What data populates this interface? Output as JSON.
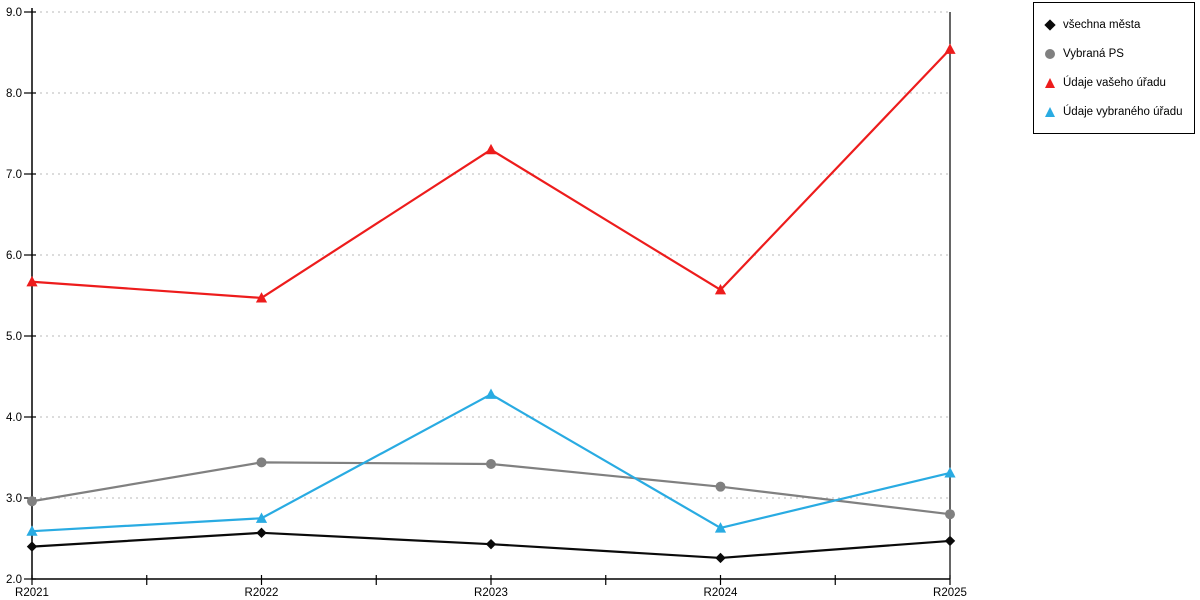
{
  "chart_data": {
    "type": "line",
    "categories": [
      "R2021",
      "R2022",
      "R2023",
      "R2024",
      "R2025"
    ],
    "series": [
      {
        "name": "všechna města",
        "marker": "diamond",
        "color": "#0a0a0a",
        "values": [
          2.4,
          2.57,
          2.43,
          2.26,
          2.47
        ]
      },
      {
        "name": "Vybraná PS",
        "marker": "circle",
        "color": "#808080",
        "values": [
          2.96,
          3.44,
          3.42,
          3.14,
          2.8
        ]
      },
      {
        "name": "Údaje vašeho úřadu",
        "marker": "triangle",
        "color": "#ed1c1c",
        "values": [
          5.67,
          5.47,
          7.3,
          5.57,
          8.54
        ]
      },
      {
        "name": "Údaje vybraného úřadu",
        "marker": "triangle",
        "color": "#29abe2",
        "values": [
          2.59,
          2.75,
          4.28,
          2.63,
          3.31
        ]
      }
    ],
    "ylim": [
      2.0,
      9.0
    ],
    "ytick_step": 1.0,
    "ytick_labels": [
      "2.0",
      "3.0",
      "4.0",
      "5.0",
      "6.0",
      "7.0",
      "8.0",
      "9.0"
    ],
    "grid": "horizontal-dotted",
    "legend_position": "top-right"
  },
  "colors": {
    "background": "#ffffff",
    "axis": "#000000",
    "gridline": "#c6c6c6",
    "tick_text": "#000000"
  }
}
